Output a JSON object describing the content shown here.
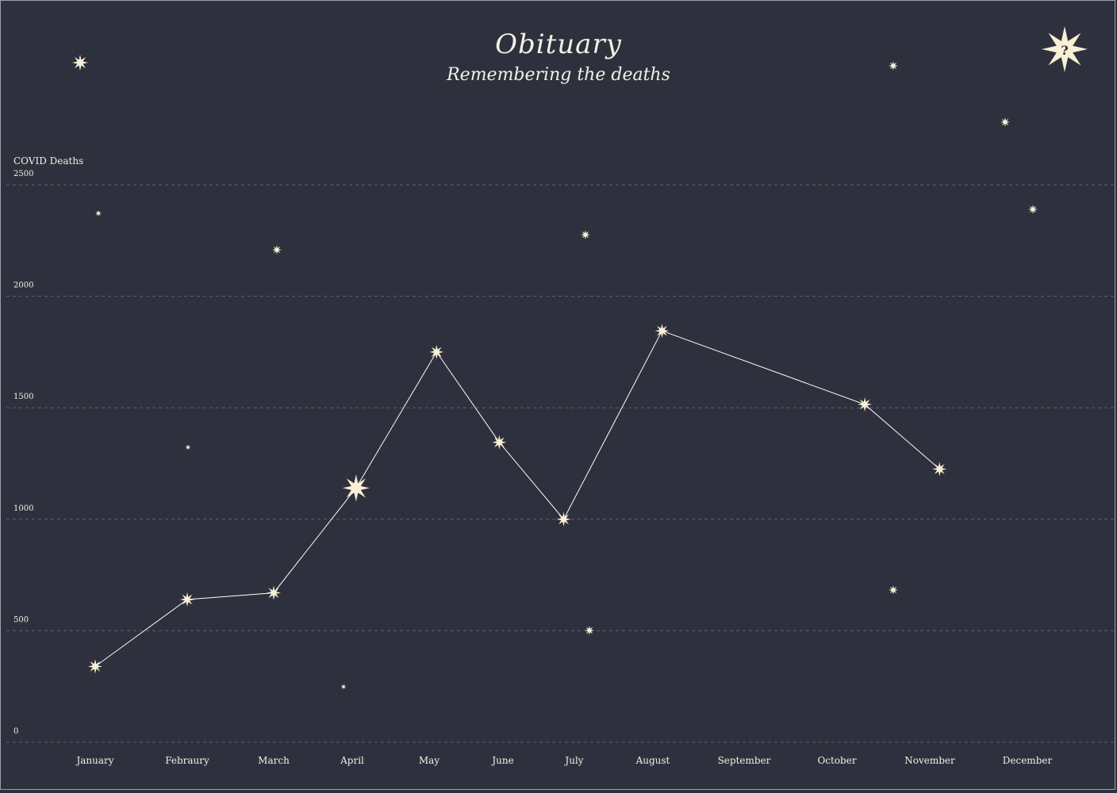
{
  "title": "Obituary",
  "subtitle": "Remembering the deaths",
  "help_glyph": "?",
  "chart_data": {
    "type": "line",
    "ylabel": "COVID Deaths",
    "xlabel": "",
    "ylim": [
      0,
      2500
    ],
    "yticks": [
      0,
      500,
      1000,
      1500,
      2000,
      2500
    ],
    "categories": [
      "January",
      "Febraury",
      "March",
      "April",
      "May",
      "June",
      "July",
      "August",
      "September",
      "October",
      "November",
      "December"
    ],
    "grid": "horizontal dashed",
    "series": [
      {
        "points": [
          {
            "x": 0.0,
            "y": 340
          },
          {
            "x": 1.0,
            "y": 640
          },
          {
            "x": 2.0,
            "y": 670
          },
          {
            "x": 3.05,
            "y": 1140,
            "highlight": true
          },
          {
            "x": 4.1,
            "y": 1750
          },
          {
            "x": 4.95,
            "y": 1345
          },
          {
            "x": 5.85,
            "y": 1000
          },
          {
            "x": 7.1,
            "y": 1845
          },
          {
            "x": 9.3,
            "y": 1515
          },
          {
            "x": 10.1,
            "y": 1225
          }
        ]
      }
    ],
    "colors": {
      "star": "#f8efd4",
      "line": "#ffffff",
      "background": "#2e313d"
    }
  }
}
